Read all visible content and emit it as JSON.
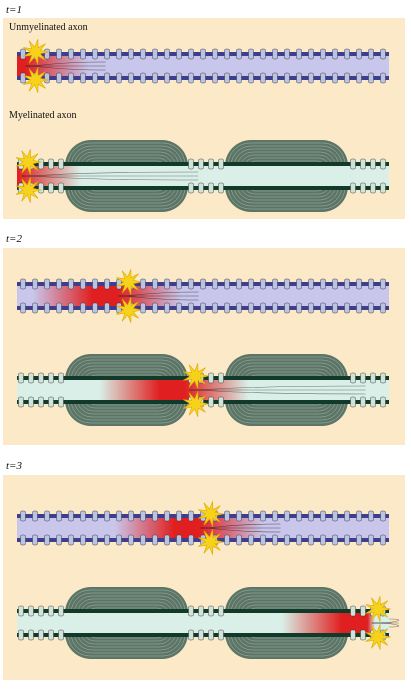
{
  "panels": [
    {
      "time_label": "t=1",
      "rows": [
        {
          "type": "unmyelinated",
          "title": "Unmyelinated axon",
          "signal_center": 0.05
        },
        {
          "type": "myelinated",
          "title": "Myelinated axon",
          "signal_center": 0.03
        }
      ]
    },
    {
      "time_label": "t=2",
      "rows": [
        {
          "type": "unmyelinated",
          "title": "",
          "signal_center": 0.3
        },
        {
          "type": "myelinated",
          "title": "",
          "signal_center": 0.48
        }
      ]
    },
    {
      "time_label": "t=3",
      "rows": [
        {
          "type": "unmyelinated",
          "title": "",
          "signal_center": 0.52
        },
        {
          "type": "myelinated",
          "title": "",
          "signal_center": 0.97
        }
      ]
    }
  ],
  "colors": {
    "panel_bg": "#fbe9c8",
    "membrane_unmyelinated": "#3f3d8c",
    "axoplasm_unmyelinated": "#c9c6ec",
    "membrane_myelinated": "#123a2a",
    "axoplasm_myelinated": "#d9efe7",
    "myelin": "#5c7566",
    "signal": "#e02020",
    "spark": "#f6d21a"
  }
}
